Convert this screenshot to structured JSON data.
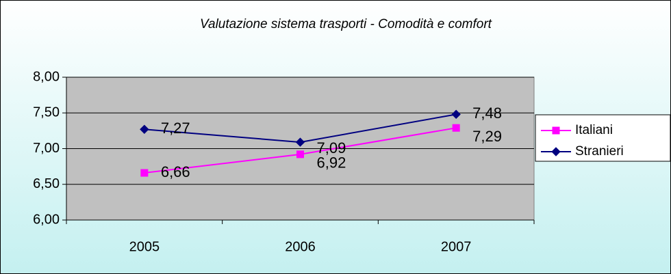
{
  "chart_data": {
    "type": "line",
    "title": "Valutazione sistema trasporti - Comodità e comfort",
    "categories": [
      "2005",
      "2006",
      "2007"
    ],
    "series": [
      {
        "name": "Italiani",
        "color": "#ff00ff",
        "marker": "square",
        "values": [
          6.66,
          6.92,
          7.29
        ],
        "value_labels": [
          "6,66",
          "6,92",
          "7,29"
        ]
      },
      {
        "name": "Stranieri",
        "color": "#000080",
        "marker": "diamond",
        "values": [
          7.27,
          7.09,
          7.48
        ],
        "value_labels": [
          "7,27",
          "7,09",
          "7,48"
        ]
      }
    ],
    "ylim": [
      6,
      8
    ],
    "yticks": [
      {
        "value": 6,
        "label": "6,00"
      },
      {
        "value": 6.5,
        "label": "6,50"
      },
      {
        "value": 7,
        "label": "7,00"
      },
      {
        "value": 7.5,
        "label": "7,50"
      },
      {
        "value": 8,
        "label": "8,00"
      }
    ],
    "grid": true,
    "legend": "right"
  }
}
